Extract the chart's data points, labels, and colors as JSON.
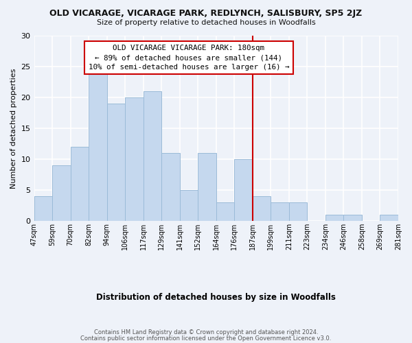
{
  "title": "OLD VICARAGE, VICARAGE PARK, REDLYNCH, SALISBURY, SP5 2JZ",
  "subtitle": "Size of property relative to detached houses in Woodfalls",
  "xlabel": "Distribution of detached houses by size in Woodfalls",
  "ylabel": "Number of detached properties",
  "bar_values": [
    4,
    9,
    12,
    24,
    19,
    20,
    21,
    11,
    5,
    11,
    3,
    10,
    4,
    3,
    3,
    0,
    1,
    1,
    0,
    1
  ],
  "bin_labels": [
    "47sqm",
    "59sqm",
    "70sqm",
    "82sqm",
    "94sqm",
    "106sqm",
    "117sqm",
    "129sqm",
    "141sqm",
    "152sqm",
    "164sqm",
    "176sqm",
    "187sqm",
    "199sqm",
    "211sqm",
    "223sqm",
    "234sqm",
    "246sqm",
    "258sqm",
    "269sqm",
    "281sqm"
  ],
  "bar_color": "#c5d8ee",
  "bar_edge_color": "#9bbbd8",
  "property_line_color": "#cc0000",
  "annotation_text_line1": "OLD VICARAGE VICARAGE PARK: 180sqm",
  "annotation_text_line2": "← 89% of detached houses are smaller (144)",
  "annotation_text_line3": "10% of semi-detached houses are larger (16) →",
  "annotation_box_color": "#ffffff",
  "annotation_box_edge_color": "#cc0000",
  "ylim": [
    0,
    30
  ],
  "yticks": [
    0,
    5,
    10,
    15,
    20,
    25,
    30
  ],
  "footer_line1": "Contains HM Land Registry data © Crown copyright and database right 2024.",
  "footer_line2": "Contains public sector information licensed under the Open Government Licence v3.0.",
  "background_color": "#eef2f9",
  "grid_color": "#ffffff"
}
